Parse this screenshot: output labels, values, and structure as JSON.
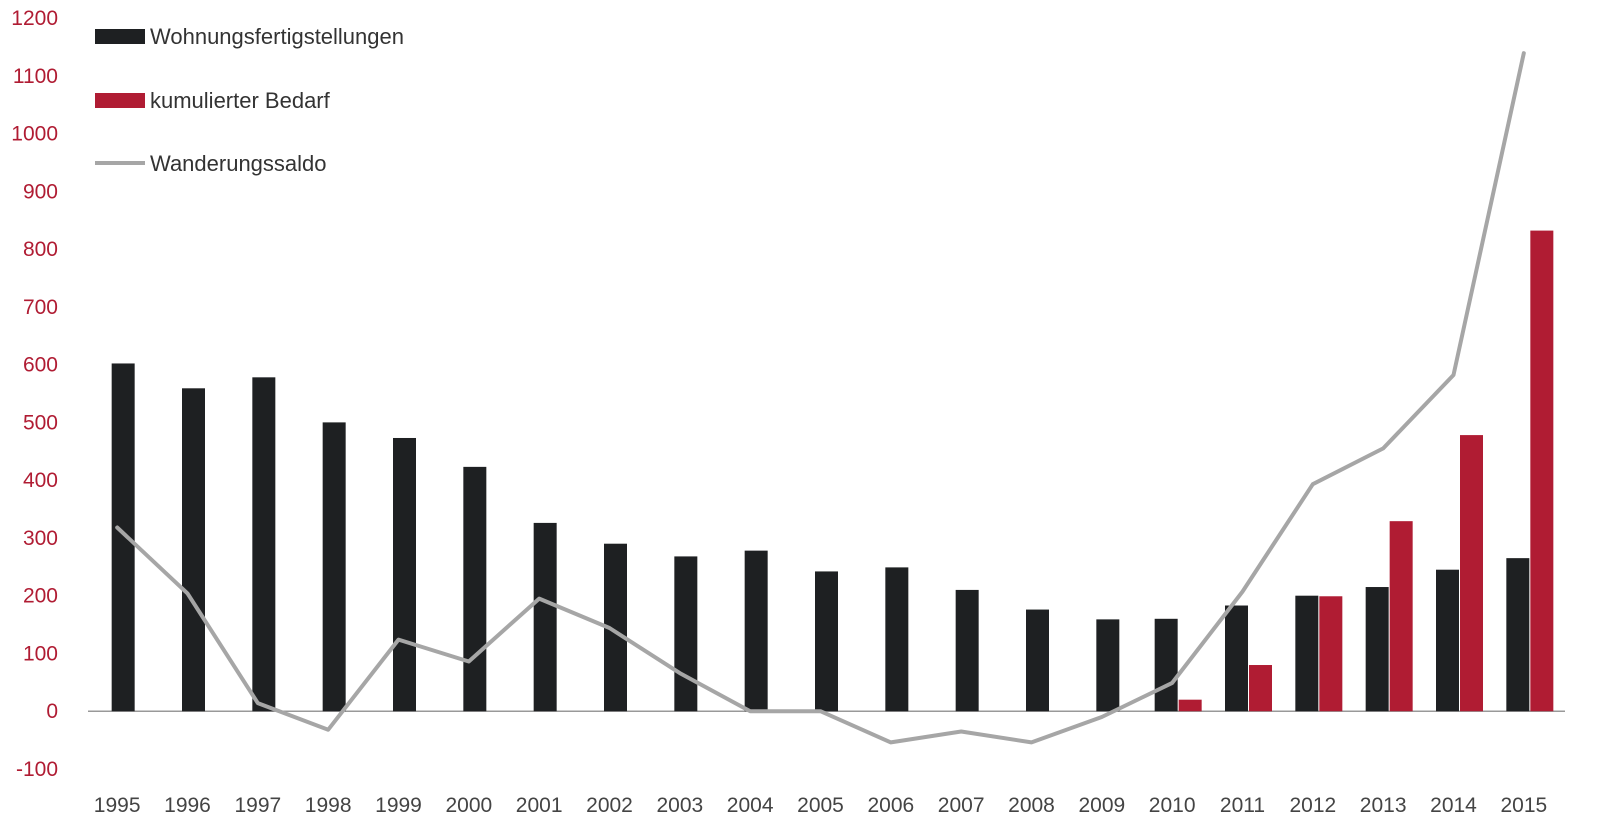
{
  "chart_data": {
    "type": "bar",
    "categories": [
      "1995",
      "1996",
      "1997",
      "1998",
      "1999",
      "2000",
      "2001",
      "2002",
      "2003",
      "2004",
      "2005",
      "2006",
      "2007",
      "2008",
      "2009",
      "2010",
      "2011",
      "2012",
      "2013",
      "2014",
      "2015"
    ],
    "series": [
      {
        "name": "Wohnungsfertigstellungen",
        "kind": "bar",
        "color": "#1e2022",
        "values": [
          602,
          559,
          578,
          500,
          473,
          423,
          326,
          290,
          268,
          278,
          242,
          249,
          210,
          176,
          159,
          160,
          183,
          200,
          215,
          245,
          265
        ]
      },
      {
        "name": "kumulierter Bedarf",
        "kind": "bar",
        "color": "#b01c33",
        "values": [
          null,
          null,
          null,
          null,
          null,
          null,
          null,
          null,
          null,
          null,
          null,
          null,
          null,
          null,
          null,
          20,
          80,
          199,
          329,
          478,
          832
        ]
      },
      {
        "name": "Wanderungssaldo",
        "kind": "line",
        "color": "#a6a6a6",
        "values": [
          318,
          204,
          14,
          -32,
          124,
          86,
          195,
          144,
          66,
          0,
          0,
          -54,
          -35,
          -54,
          -10,
          49,
          207,
          393,
          455,
          582,
          1139
        ]
      }
    ],
    "ylim": [
      -100,
      1200
    ],
    "yticks": [
      "-100",
      "0",
      "100",
      "200",
      "300",
      "400",
      "500",
      "600",
      "700",
      "800",
      "900",
      "1000",
      "1100",
      "1200"
    ],
    "grid": false,
    "legend_position": "top-left",
    "colors": {
      "ytick": "#b01c33",
      "xtick": "#444444",
      "axis": "#999999"
    }
  }
}
